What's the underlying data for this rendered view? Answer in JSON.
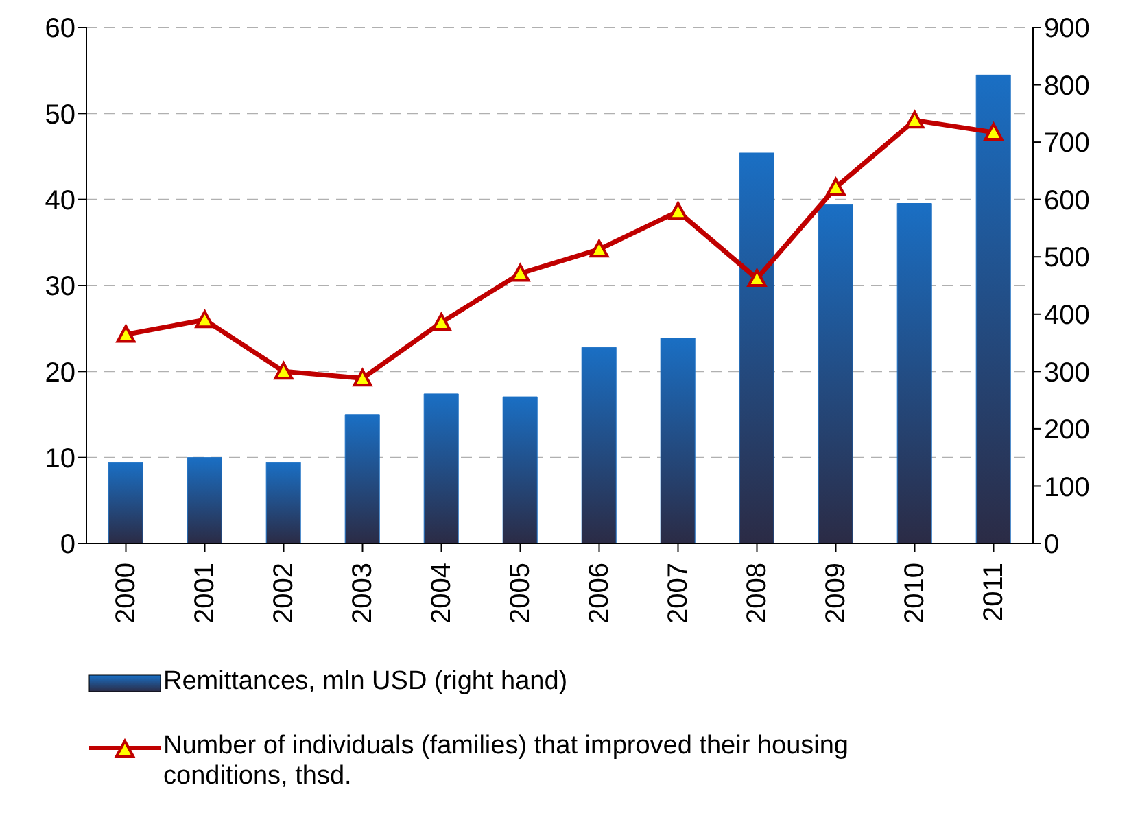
{
  "chart_data": {
    "type": "bar",
    "categories": [
      "2000",
      "2001",
      "2002",
      "2003",
      "2004",
      "2005",
      "2006",
      "2007",
      "2008",
      "2009",
      "2010",
      "2011"
    ],
    "series": [
      {
        "name": "Remittances, mln USD (right hand)",
        "axis": "y2",
        "color": "#1a6fc4",
        "values": [
          141,
          150,
          141,
          224,
          261,
          256,
          342,
          358,
          681,
          591,
          593,
          817
        ]
      },
      {
        "name": "Number of individuals (families) that improved their housing conditions, thsd.",
        "type": "line",
        "color": "#c00000",
        "marker": "triangle",
        "values": [
          24.3,
          26,
          20,
          19.2,
          25.7,
          31.4,
          34.2,
          38.6,
          30.8,
          41.4,
          49.2,
          47.8
        ]
      }
    ],
    "ylim": [
      0,
      60
    ],
    "yticks": [
      0,
      10,
      20,
      30,
      40,
      50,
      60
    ],
    "y2lim": [
      0,
      900
    ],
    "y2ticks": [
      0,
      100,
      200,
      300,
      400,
      500,
      600,
      700,
      800,
      900
    ],
    "grid": "y",
    "legend": "bottom"
  }
}
